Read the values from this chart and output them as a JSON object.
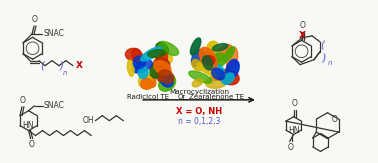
{
  "bg_color": "#f8f8f4",
  "macrocyclization_label": "Macrocyclization",
  "radicicol_label": "Radicicol TE",
  "or_label": "Or",
  "zearalenone_label": "Zearalenone TE",
  "x_eq_label": "X = O, NH",
  "n_eq_label": "n = 0,1,2,3",
  "red": "#cc0000",
  "blue": "#5555cc",
  "black": "#1a1a1a",
  "line_color": "#333333",
  "protein1_colors": [
    "#cc2200",
    "#ee6600",
    "#ddbb00",
    "#44aa00",
    "#0033cc",
    "#00aacc",
    "#aa3300",
    "#226600"
  ],
  "protein2_colors": [
    "#ddbb00",
    "#ee6600",
    "#cc2200",
    "#00aacc",
    "#44aa00",
    "#0033cc",
    "#ccaa00",
    "#006633"
  ]
}
